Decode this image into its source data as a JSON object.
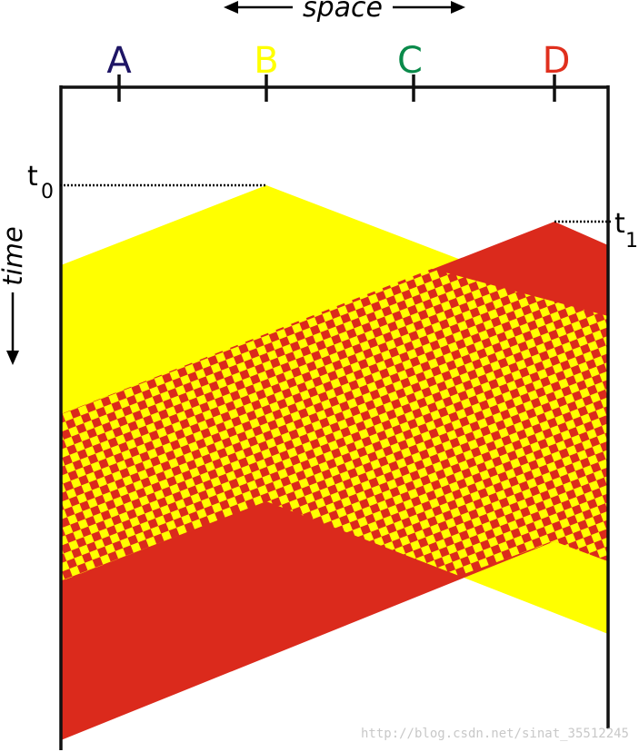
{
  "axes": {
    "space_label": "space",
    "time_label": "time"
  },
  "stations": [
    {
      "name": "A",
      "color": "#1e1565"
    },
    {
      "name": "B",
      "color": "#ffff00"
    },
    {
      "name": "C",
      "color": "#0a8a4a"
    },
    {
      "name": "D",
      "color": "#e0301e"
    }
  ],
  "time_marks": [
    {
      "main": "t",
      "sub": "0"
    },
    {
      "main": "t",
      "sub": "1"
    }
  ],
  "colors": {
    "yellow": "#ffff00",
    "red": "#db2a1c",
    "line": "#111111"
  },
  "watermark": "http://blog.csdn.net/sinat_35512245"
}
